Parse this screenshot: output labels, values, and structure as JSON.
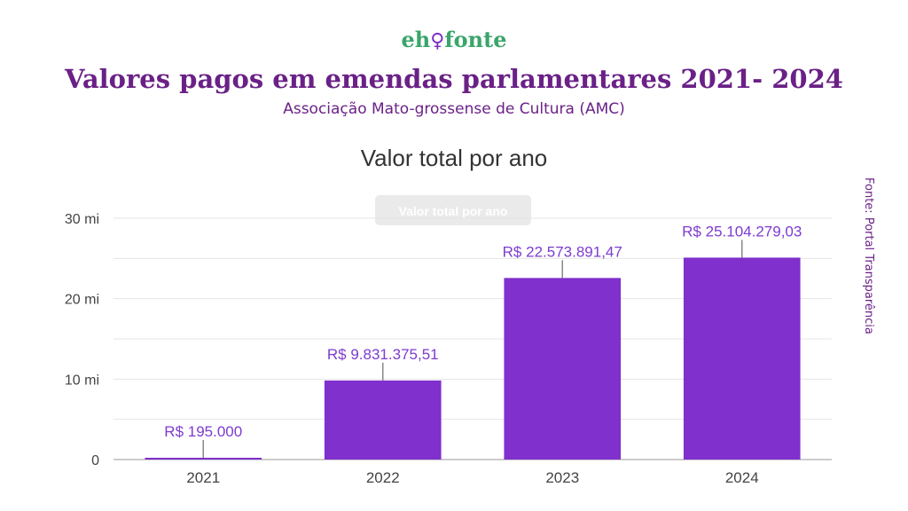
{
  "header": {
    "logo_left": "eh",
    "logo_mark": "♀",
    "logo_right": "fonte",
    "title": "Valores pagos em emendas parlamentares 2021- 2024",
    "subtitle": "Associação Mato-grossense de Cultura (AMC)",
    "source": "Fonte: Portal Transparência"
  },
  "colors": {
    "bar": "#8030cc",
    "label": "#7d3ccf",
    "title": "#6a2187",
    "logo_green": "#3aa56a"
  },
  "chart_data": {
    "type": "bar",
    "title": "Valor total por ano",
    "watermark": "Valor total por ano",
    "categories": [
      "2021",
      "2022",
      "2023",
      "2024"
    ],
    "values": [
      195000,
      9831375.51,
      22573891.47,
      25104279.03
    ],
    "data_labels": [
      "R$ 195.000",
      "R$ 9.831.375,51",
      "R$ 22.573.891,47",
      "R$ 25.104.279,03"
    ],
    "y_ticks": [
      0,
      10000000,
      20000000,
      30000000
    ],
    "y_tick_labels": [
      "0",
      "10 mi",
      "20 mi",
      "30 mi"
    ],
    "ylim": [
      0,
      30000000
    ],
    "grid": true,
    "legend": "none"
  }
}
